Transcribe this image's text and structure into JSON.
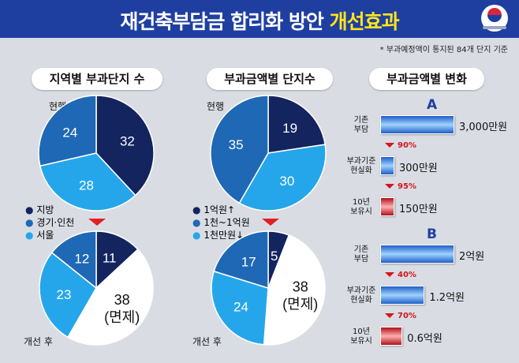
{
  "header": {
    "title": "재건축부담금 합리화 방안",
    "title_highlight": "개선효과"
  },
  "footnote": "* 부과예정액이 통지된 84개 단지 기준",
  "colors": {
    "dark": "#13245f",
    "mid": "#1f68b5",
    "light": "#26a6ea",
    "white": "#ffffff",
    "accent": "#e21f26"
  },
  "labels": {
    "before": "현행",
    "after": "개선 후"
  },
  "chart_data": [
    {
      "type": "pie",
      "title": "지역별 부과단지 수",
      "legend": [
        "지방",
        "경기·인천",
        "서울"
      ],
      "before": {
        "values": [
          32,
          28,
          24
        ],
        "labels": [
          "32",
          "28",
          "24"
        ]
      },
      "after": {
        "values": [
          11,
          38,
          23,
          12
        ],
        "labels": [
          "11",
          "38\n(면제)",
          "23",
          "12"
        ]
      }
    },
    {
      "type": "pie",
      "title": "부과금액별 단지수",
      "legend": [
        "1억원↑",
        "1천~1억원",
        "1천만원↓"
      ],
      "before": {
        "values": [
          19,
          30,
          35
        ],
        "labels": [
          "19",
          "30",
          "35"
        ]
      },
      "after": {
        "values": [
          5,
          38,
          24,
          17
        ],
        "labels": [
          "5",
          "38\n(면제)",
          "24",
          "17"
        ]
      }
    },
    {
      "type": "bar",
      "title": "부과금액별 변화",
      "groups": [
        {
          "name": "A",
          "categories": [
            "기존\n부담",
            "부과기준\n현실화",
            "10년\n보유시"
          ],
          "values": [
            3000,
            300,
            150
          ],
          "value_labels": [
            "3,000만원",
            "300만원",
            "150만원"
          ],
          "reductions": [
            "90%",
            "95%"
          ]
        },
        {
          "name": "B",
          "categories": [
            "기존\n부담",
            "부과기준\n현실화",
            "10년\n보유시"
          ],
          "values": [
            2,
            1.2,
            0.6
          ],
          "value_labels": [
            "2억원",
            "1.2억원",
            "0.6억원"
          ],
          "reductions": [
            "40%",
            "70%"
          ]
        }
      ]
    }
  ]
}
